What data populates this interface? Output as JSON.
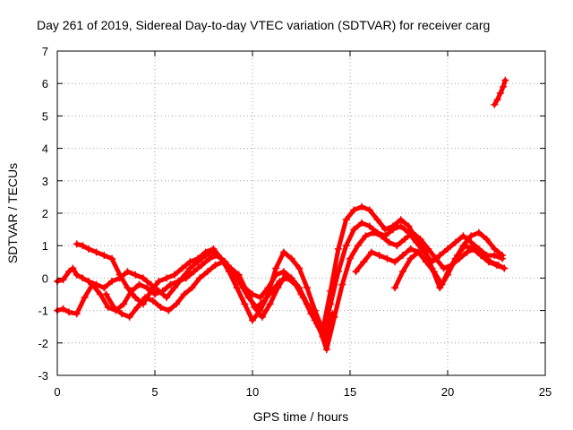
{
  "chart_data": {
    "type": "scatter",
    "title": "Day 261 of 2019, Sidereal Day-to-day VTEC variation (SDTVAR) for receiver carg",
    "xlabel": "GPS time / hours",
    "ylabel": "SDTVAR / TECUs",
    "xlim": [
      0,
      25
    ],
    "ylim": [
      -3,
      7
    ],
    "xticks": [
      "0",
      "5",
      "10",
      "15",
      "20",
      "25"
    ],
    "yticks": [
      "-3",
      "-2",
      "-1",
      "0",
      "1",
      "2",
      "3",
      "4",
      "5",
      "6",
      "7"
    ],
    "grid": true,
    "marker": "+",
    "color": "#ff0000",
    "series": [
      {
        "name": "track-1",
        "x": [
          0,
          0.3,
          0.6,
          0.8,
          1.0,
          1.3,
          1.6,
          2.0,
          2.4,
          2.8,
          3.2,
          3.6,
          4.0,
          4.4,
          4.8,
          5.2,
          5.6,
          6.0,
          6.4,
          6.8,
          7.2,
          7.6,
          8.0,
          8.4,
          8.8,
          9.2,
          9.6,
          10.0,
          10.4,
          10.8,
          11.2,
          11.6,
          12.0,
          12.4,
          12.8,
          13.2,
          13.6,
          14.0,
          14.4,
          14.8,
          15.2,
          15.6,
          16.0,
          16.4,
          16.8,
          17.2,
          17.6,
          18.0,
          18.4,
          18.8,
          19.2,
          19.6,
          20.0,
          20.4,
          20.8,
          21.2,
          21.6,
          22.0,
          22.4,
          22.8
        ],
        "y": [
          -0.1,
          -0.05,
          0.2,
          0.3,
          0.1,
          0.0,
          -0.1,
          -0.2,
          -0.3,
          -0.1,
          0.0,
          0.2,
          0.1,
          0.0,
          -0.2,
          -0.4,
          -0.6,
          -0.3,
          0.0,
          0.3,
          0.5,
          0.7,
          0.8,
          0.6,
          0.3,
          0.0,
          -0.3,
          -0.5,
          -0.6,
          -0.3,
          0.1,
          0.2,
          0.0,
          -0.3,
          -0.8,
          -1.3,
          -1.8,
          -0.8,
          0.2,
          1.0,
          1.5,
          1.7,
          1.6,
          1.4,
          1.3,
          1.5,
          1.6,
          1.4,
          1.1,
          0.8,
          0.5,
          0.7,
          0.9,
          1.1,
          1.3,
          1.1,
          0.9,
          0.7,
          0.7,
          0.6
        ]
      },
      {
        "name": "track-2",
        "x": [
          0,
          0.3,
          0.6,
          1.0,
          1.4,
          1.8,
          2.2,
          2.6,
          3.0,
          3.4,
          3.8,
          4.2,
          4.6,
          5.0,
          5.4,
          5.8,
          6.2,
          6.6,
          7.0,
          7.4,
          7.8,
          8.2,
          8.6,
          9.0,
          9.4,
          9.8,
          10.2,
          10.6,
          11.0,
          11.4,
          11.8,
          12.2,
          12.6,
          13.0,
          13.4,
          13.8,
          14.2,
          14.6,
          15.0,
          15.4,
          15.8,
          16.2,
          16.6,
          17.0,
          17.4,
          17.8,
          18.2,
          18.6,
          19.0,
          19.4,
          19.8,
          20.2,
          20.6,
          21.0,
          21.4,
          21.8,
          22.2,
          22.6,
          22.9
        ],
        "y": [
          -1.0,
          -0.95,
          -1.05,
          -1.1,
          -0.6,
          -0.2,
          -0.5,
          -0.9,
          -1.0,
          -0.8,
          -0.4,
          -0.2,
          -0.3,
          -0.5,
          -0.4,
          -0.2,
          -0.1,
          0.0,
          0.2,
          0.4,
          0.6,
          0.7,
          0.5,
          0.2,
          -0.2,
          -0.6,
          -0.9,
          -0.7,
          -0.4,
          -0.1,
          0.0,
          -0.2,
          -0.6,
          -1.1,
          -1.5,
          -2.2,
          -1.2,
          -0.2,
          0.6,
          1.0,
          1.3,
          1.4,
          1.3,
          1.1,
          1.0,
          1.2,
          1.4,
          1.2,
          0.9,
          0.6,
          0.3,
          0.4,
          0.6,
          0.8,
          0.9,
          0.7,
          0.5,
          0.4,
          0.3
        ]
      },
      {
        "name": "track-3",
        "x": [
          1.0,
          1.3,
          1.6,
          2.0,
          2.4,
          2.8,
          3.2,
          3.6,
          4.0,
          4.4,
          4.8,
          5.2,
          5.6,
          6.0,
          6.4,
          6.8,
          7.2,
          7.6,
          8.0,
          8.4,
          8.8,
          9.2,
          9.6,
          10.0,
          10.4,
          10.8,
          11.2,
          11.6,
          12.0,
          12.4,
          12.8,
          13.2,
          13.6,
          14.0,
          14.4,
          14.8,
          15.2,
          15.6,
          16.0,
          16.4,
          16.8,
          17.2,
          17.6,
          18.0,
          18.4,
          18.8,
          19.2,
          19.6,
          20.0,
          20.4,
          20.8,
          21.2,
          21.6,
          22.0,
          22.4,
          22.8
        ],
        "y": [
          1.05,
          1.0,
          0.9,
          0.8,
          0.7,
          0.6,
          0.1,
          -0.3,
          -0.6,
          -0.8,
          -0.4,
          -0.1,
          0.0,
          0.1,
          0.3,
          0.5,
          0.6,
          0.8,
          0.9,
          0.6,
          0.2,
          -0.3,
          -0.8,
          -1.3,
          -1.0,
          -0.5,
          0.3,
          0.8,
          0.6,
          0.3,
          -0.3,
          -1.0,
          -1.6,
          -0.4,
          0.9,
          1.8,
          2.1,
          2.2,
          2.1,
          1.8,
          1.5,
          1.6,
          1.8,
          1.6,
          1.2,
          0.9,
          0.3,
          -0.3,
          0.1,
          0.6,
          1.0,
          1.3,
          1.4,
          1.2,
          0.9,
          0.7
        ]
      },
      {
        "name": "track-4",
        "x": [
          2.5,
          2.9,
          3.3,
          3.7,
          4.1,
          4.5,
          4.9,
          5.3,
          5.7,
          6.1,
          6.5,
          6.9,
          7.3,
          7.7,
          8.1,
          8.5,
          8.9,
          9.3,
          9.7,
          10.1,
          10.5,
          10.9,
          11.3,
          11.7,
          12.1,
          12.5,
          12.9,
          13.3,
          13.7,
          14.1
        ],
        "y": [
          -0.5,
          -0.9,
          -1.1,
          -1.2,
          -0.9,
          -0.6,
          -0.7,
          -0.9,
          -1.0,
          -0.8,
          -0.5,
          -0.3,
          0.0,
          0.2,
          0.4,
          0.5,
          0.3,
          0.1,
          -0.4,
          -0.9,
          -1.2,
          -0.8,
          -0.3,
          0.1,
          -0.1,
          -0.5,
          -0.9,
          -1.4,
          -1.9,
          -1.1
        ]
      },
      {
        "name": "track-5",
        "x": [
          17.3,
          17.7,
          18.1,
          18.5,
          18.9,
          19.3,
          19.7,
          20.1,
          20.5,
          20.9,
          21.3,
          21.7,
          22.1,
          22.5,
          22.9
        ],
        "y": [
          -0.3,
          0.2,
          0.6,
          0.8,
          0.5,
          0.2,
          -0.2,
          0.3,
          0.7,
          1.0,
          0.9,
          0.7,
          0.5,
          0.4,
          0.3
        ]
      },
      {
        "name": "track-6",
        "x": [
          15.3,
          15.7,
          16.1,
          16.5,
          16.9,
          17.3,
          17.7,
          18.1,
          18.5
        ],
        "y": [
          0.2,
          0.5,
          0.8,
          0.7,
          0.6,
          0.5,
          0.7,
          0.9,
          0.8
        ]
      },
      {
        "name": "track-7",
        "x": [
          22.4,
          22.55,
          22.7,
          22.85,
          22.95
        ],
        "y": [
          5.35,
          5.5,
          5.7,
          5.9,
          6.1
        ]
      }
    ]
  }
}
